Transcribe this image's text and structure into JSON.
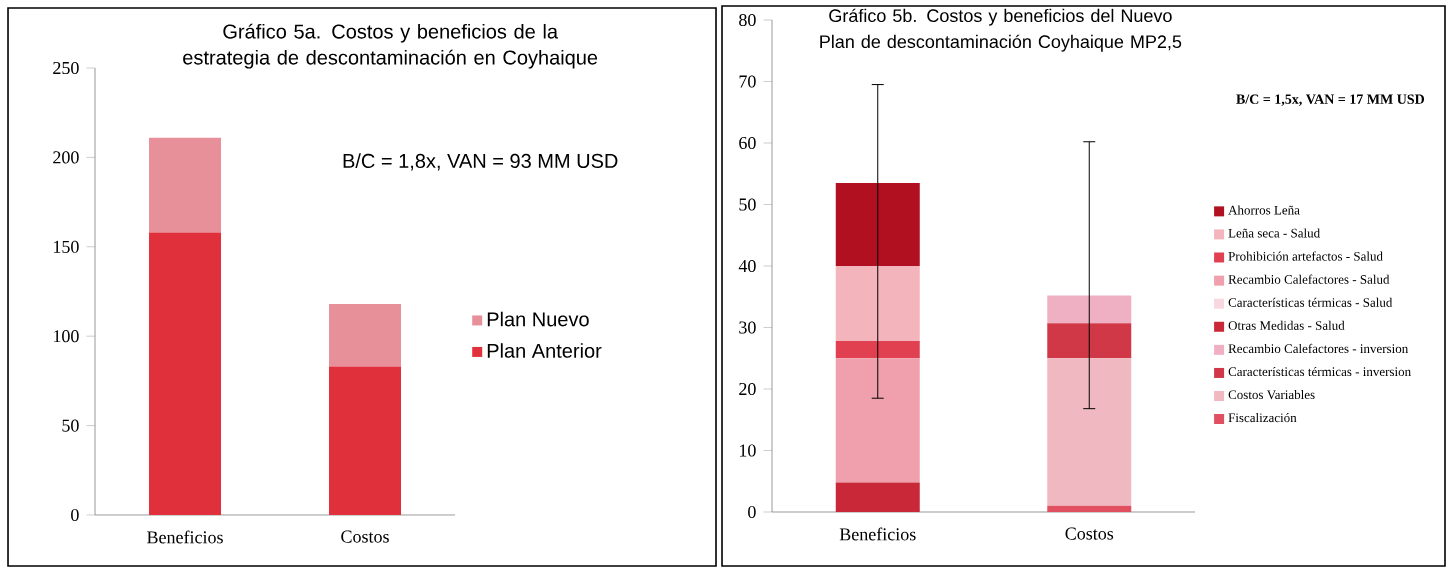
{
  "chart_data": [
    {
      "type": "bar",
      "stacked": true,
      "title": "Gráfico  5a. Costos y beneficios de la estrategia de descontaminación en Coyhaique",
      "categories": [
        "Beneficios",
        "Costos"
      ],
      "series": [
        {
          "name": "Plan Anterior",
          "color": "#e0303c",
          "values": [
            158,
            83
          ]
        },
        {
          "name": "Plan Nuevo",
          "color": "#e8909a",
          "values": [
            53,
            35
          ]
        }
      ],
      "ylim": [
        0,
        250
      ],
      "yticks": [
        0,
        50,
        100,
        150,
        200,
        250
      ],
      "legend": "right",
      "annotations": [
        "B/C = 1,8x, VAN = 93 MM USD"
      ]
    },
    {
      "type": "bar",
      "stacked": true,
      "title": "Gráfico  5b. Costos y beneficios del Nuevo Plan de descontaminación  Coyhaique MP2,5",
      "categories": [
        "Beneficios",
        "Costos"
      ],
      "series": [
        {
          "name": "Fiscalización",
          "color": "#e05060",
          "values": [
            0,
            1
          ]
        },
        {
          "name": "Costos Variables",
          "color": "#f0b8c0",
          "values": [
            0,
            24
          ]
        },
        {
          "name": "Características térmicas - inversion",
          "color": "#d03848",
          "values": [
            0,
            5.7
          ]
        },
        {
          "name": "Recambio Calefactores - inversion",
          "color": "#f0b0c4",
          "values": [
            0,
            4.5
          ],
          "errors": [
            null,
            [
              16.8,
              60.2
            ]
          ]
        },
        {
          "name": "Otras Medidas - Salud",
          "color": "#c82838",
          "values": [
            4.8,
            0
          ]
        },
        {
          "name": "Características térmicas - Salud",
          "color": "#f8d8e0",
          "values": [
            0,
            0
          ]
        },
        {
          "name": "Recambio Calefactores - Salud",
          "color": "#f0a0ac",
          "values": [
            20.2,
            0
          ]
        },
        {
          "name": "Prohibición artefactos - Salud",
          "color": "#e04050",
          "values": [
            2.8,
            0
          ]
        },
        {
          "name": "Leña seca - Salud",
          "color": "#f4b4bc",
          "values": [
            12.2,
            0
          ]
        },
        {
          "name": "Ahorros Leña",
          "color": "#b01020",
          "values": [
            13.5,
            0
          ],
          "errors": [
            [
              18.5,
              69.5
            ],
            null
          ]
        }
      ],
      "ylim": [
        0,
        80
      ],
      "yticks": [
        0,
        10,
        20,
        30,
        40,
        50,
        60,
        70,
        80
      ],
      "legend": "right",
      "annotations": [
        "B/C = 1,5x, VAN = 17 MM USD"
      ]
    }
  ]
}
